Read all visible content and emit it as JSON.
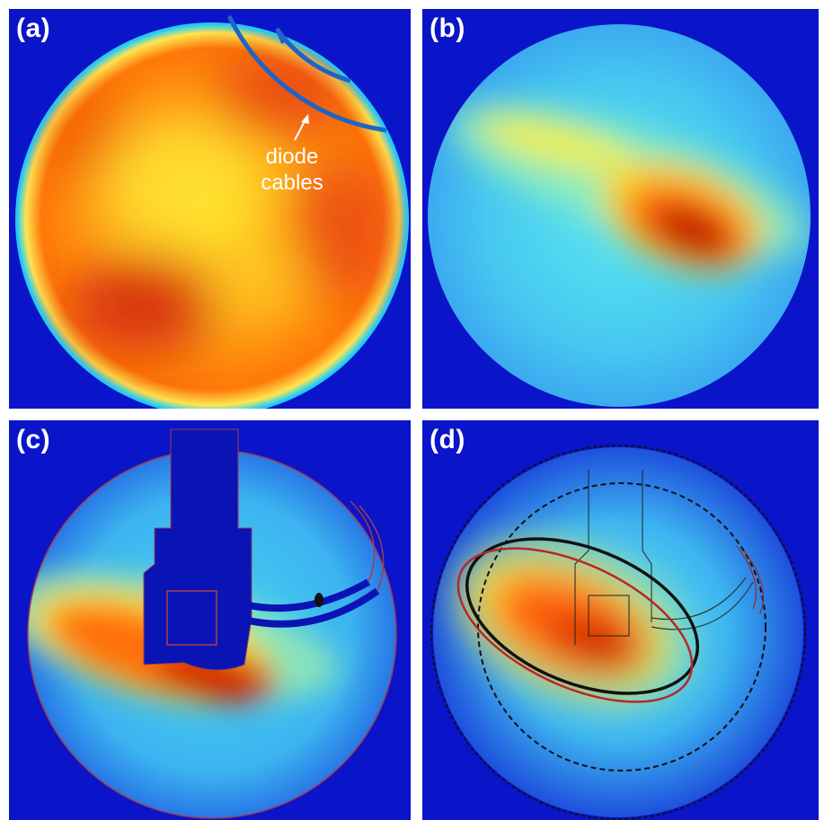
{
  "figure": {
    "panels": [
      {
        "id": "a",
        "label": "(a)"
      },
      {
        "id": "b",
        "label": "(b)"
      },
      {
        "id": "c",
        "label": "(c)"
      },
      {
        "id": "d",
        "label": "(d)"
      }
    ],
    "annotation": {
      "line1": "diode",
      "line2": "cables"
    }
  },
  "colors": {
    "background_blue": "#0a14c8",
    "hot": "#c81400",
    "warm": "#ff6a00",
    "yellow": "#ffe61e",
    "cyan": "#3ccdf5",
    "contour_black": "#111111",
    "contour_red": "#b4282a"
  }
}
